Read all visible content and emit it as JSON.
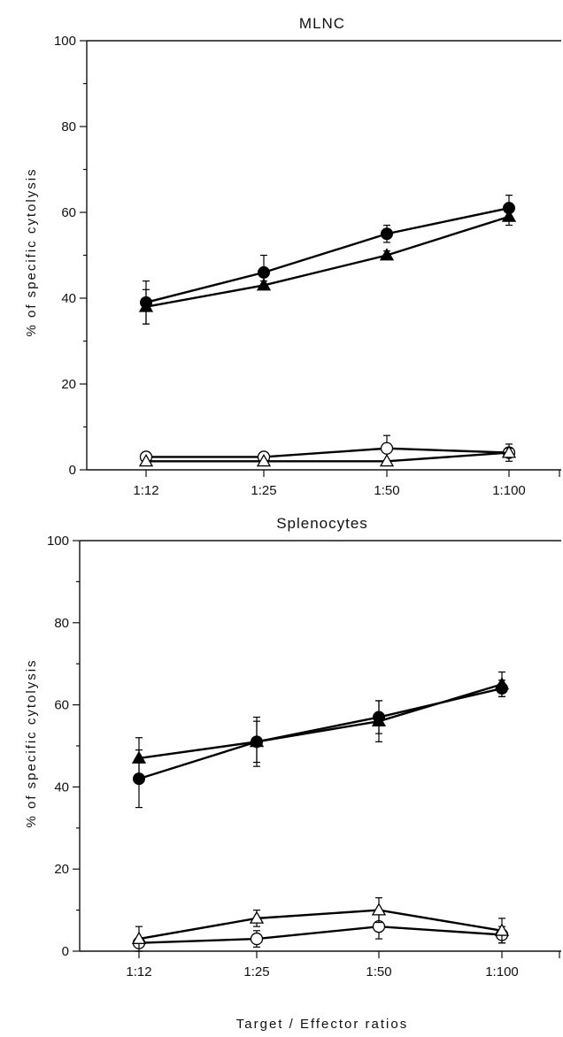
{
  "chart_data": [
    {
      "type": "line",
      "title": "MLNC",
      "xlabel": "",
      "ylabel": "% of specific cytolysis",
      "categories": [
        "1:12",
        "1:25",
        "1:50",
        "1:100"
      ],
      "ylim": [
        0,
        100
      ],
      "yticks": [
        0,
        20,
        40,
        60,
        80,
        100
      ],
      "grid": false,
      "series": [
        {
          "marker": "filled-circle",
          "values": [
            39,
            46,
            55,
            61
          ],
          "errors": [
            5,
            4,
            2,
            3
          ]
        },
        {
          "marker": "filled-triangle",
          "values": [
            38,
            43,
            50,
            59
          ],
          "errors": [
            4,
            1,
            1,
            2
          ]
        },
        {
          "marker": "open-circle",
          "values": [
            3,
            3,
            5,
            4
          ],
          "errors": [
            0,
            0,
            3,
            2
          ]
        },
        {
          "marker": "open-triangle",
          "values": [
            2,
            2,
            2,
            4
          ],
          "errors": [
            0,
            0,
            0,
            1
          ]
        }
      ]
    },
    {
      "type": "line",
      "title": "Splenocytes",
      "xlabel": "Target / Effector ratios",
      "ylabel": "% of specific cytolysis",
      "categories": [
        "1:12",
        "1:25",
        "1:50",
        "1:100"
      ],
      "ylim": [
        0,
        100
      ],
      "yticks": [
        0,
        20,
        40,
        60,
        80,
        100
      ],
      "grid": false,
      "series": [
        {
          "marker": "filled-circle",
          "values": [
            42,
            51,
            57,
            64
          ],
          "errors": [
            7,
            5,
            4,
            2
          ]
        },
        {
          "marker": "filled-triangle",
          "values": [
            47,
            51,
            56,
            65
          ],
          "errors": [
            5,
            6,
            5,
            3
          ]
        },
        {
          "marker": "open-circle",
          "values": [
            2,
            3,
            6,
            4
          ],
          "errors": [
            1,
            2,
            3,
            2
          ]
        },
        {
          "marker": "open-triangle",
          "values": [
            3,
            8,
            10,
            5
          ],
          "errors": [
            3,
            2,
            3,
            3
          ]
        }
      ]
    }
  ]
}
